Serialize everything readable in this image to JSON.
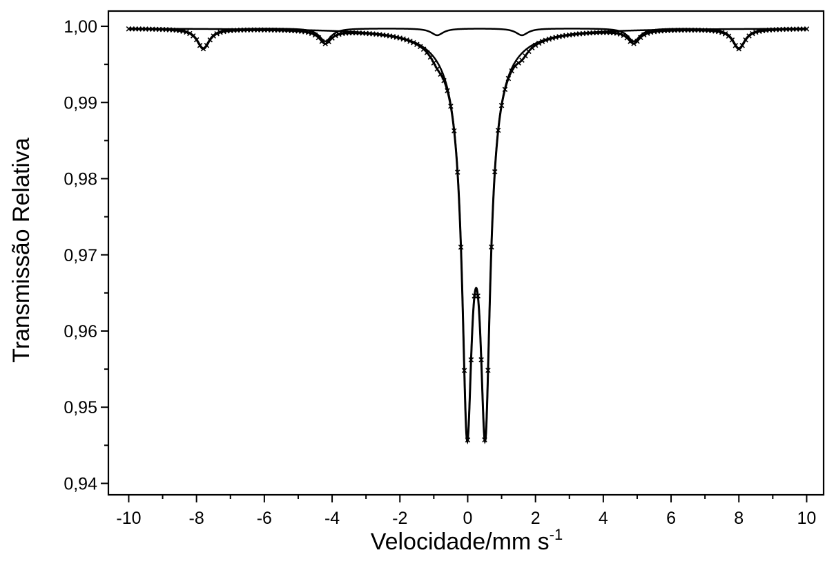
{
  "chart_data": {
    "type": "line",
    "title": "",
    "xlabel": "Velocidade/mm s",
    "xlabel_superscript": "-1",
    "ylabel": "Transmissão Relativa",
    "xlim": [
      -10.6,
      10.5
    ],
    "ylim": [
      0.9385,
      1.002
    ],
    "xticks": [
      -10,
      -8,
      -6,
      -4,
      -2,
      0,
      2,
      4,
      6,
      8,
      10
    ],
    "xtick_labels": [
      "-10",
      "-8",
      "-6",
      "-4",
      "-2",
      "0",
      "2",
      "4",
      "6",
      "8",
      "10"
    ],
    "yticks": [
      0.94,
      0.95,
      0.96,
      0.97,
      0.98,
      0.99,
      1.0
    ],
    "ytick_labels": [
      "0,94",
      "0,95",
      "0,96",
      "0,97",
      "0,98",
      "0,99",
      "1,00"
    ],
    "grid": false,
    "legend": "none",
    "colors": {
      "line": "#000000",
      "background": "#ffffff"
    },
    "series": [
      {
        "role": "doublet-subspectrum",
        "baseline": 0.99975,
        "lines": [
          {
            "center": -0.02,
            "depth": 0.0415,
            "hwhm": 0.17
          },
          {
            "center": 0.52,
            "depth": 0.0415,
            "hwhm": 0.17
          }
        ],
        "broad_wing": {
          "center": 0.25,
          "depth": 0.0105,
          "hwhm": 0.62
        }
      },
      {
        "role": "sextet-subspectrum",
        "baseline": 0.99975,
        "lines": [
          {
            "center": -7.8,
            "depth": 0.0026,
            "hwhm": 0.22
          },
          {
            "center": -4.2,
            "depth": 0.0017,
            "hwhm": 0.22
          },
          {
            "center": -0.9,
            "depth": 0.0009,
            "hwhm": 0.22
          },
          {
            "center": 1.6,
            "depth": 0.0009,
            "hwhm": 0.22
          },
          {
            "center": 4.9,
            "depth": 0.0017,
            "hwhm": 0.22
          },
          {
            "center": 8.0,
            "depth": 0.0026,
            "hwhm": 0.22
          }
        ]
      },
      {
        "role": "experimental-points",
        "sampling": {
          "x_start": -10.0,
          "x_end": 10.0,
          "step": 0.1
        }
      }
    ]
  }
}
